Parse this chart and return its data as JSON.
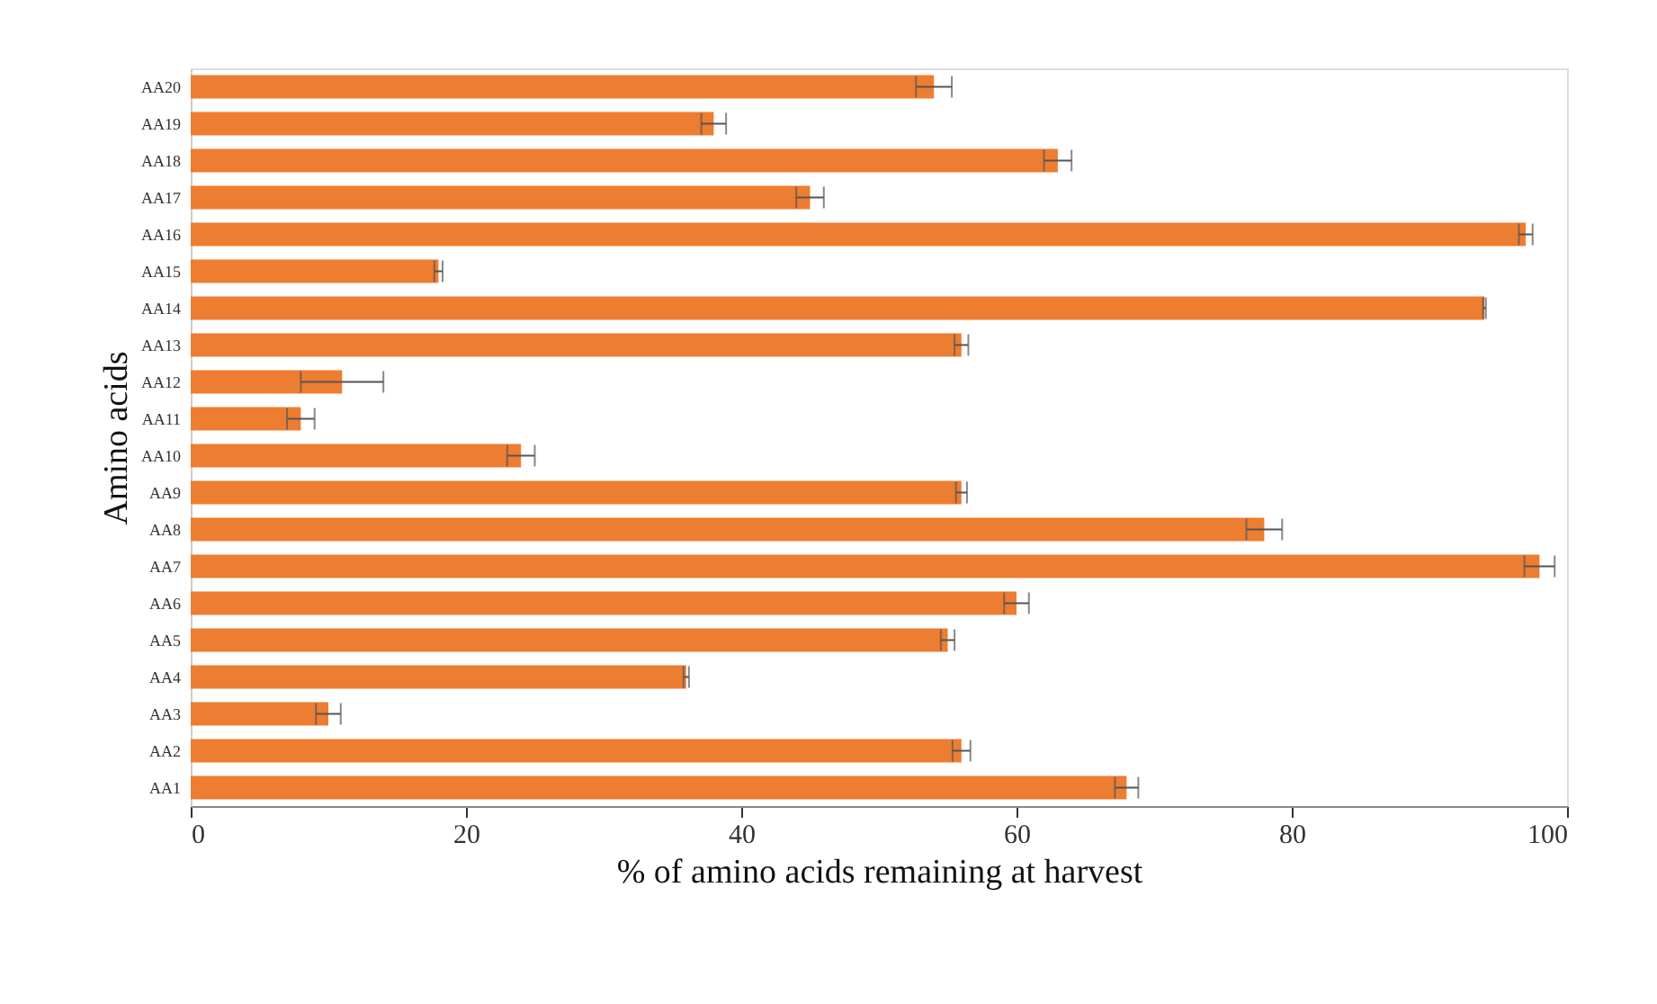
{
  "chart_data": {
    "type": "bar",
    "orientation": "horizontal",
    "xlabel": "% of amino acids remaining at harvest",
    "ylabel": "Amino acids",
    "categories": [
      "AA20",
      "AA19",
      "AA18",
      "AA17",
      "AA16",
      "AA15",
      "AA14",
      "AA13",
      "AA12",
      "AA11",
      "AA10",
      "AA9",
      "AA8",
      "AA7",
      "AA6",
      "AA5",
      "AA4",
      "AA3",
      "AA2",
      "AA1"
    ],
    "values": [
      54,
      38,
      63,
      45,
      97,
      18,
      94,
      56,
      11,
      8,
      24,
      56,
      78,
      98,
      60,
      55,
      36,
      10,
      56,
      68
    ],
    "errors": [
      1.3,
      0.9,
      1,
      1,
      0.5,
      0.3,
      0.1,
      0.5,
      3,
      1,
      1,
      0.4,
      1.3,
      1.1,
      0.9,
      0.5,
      0.2,
      0.9,
      0.65,
      0.85
    ],
    "color": "#ed7d31",
    "xlim": [
      0,
      100
    ],
    "xticks": [
      0,
      20,
      40,
      60,
      80,
      100
    ],
    "grid": false
  }
}
